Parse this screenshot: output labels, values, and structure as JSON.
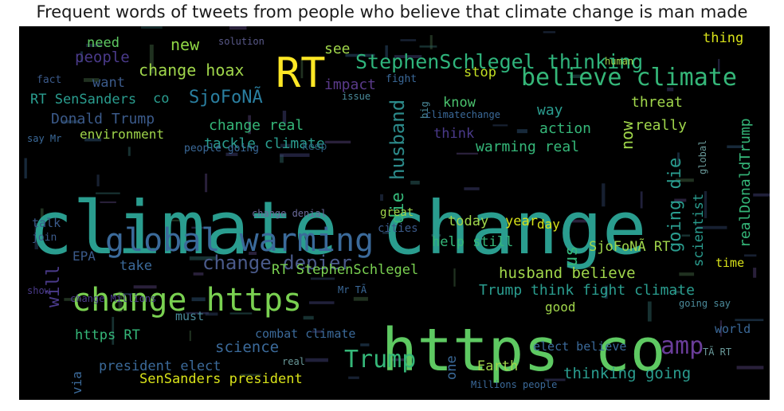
{
  "title": "Frequent words of tweets from people who believe that climate change is man made",
  "colors": {
    "background": "#000000",
    "title_text": "#1a1a1a"
  },
  "words": [
    {
      "text": "climate change",
      "size": 92,
      "color": "#2a9d8f"
    },
    {
      "text": "https co",
      "size": 74,
      "color": "#5ec962"
    },
    {
      "text": "RT",
      "size": 52,
      "color": "#fde725"
    },
    {
      "text": "global warming",
      "size": 40,
      "color": "#3b6a9a"
    },
    {
      "text": "change https",
      "size": 40,
      "color": "#7ad151"
    },
    {
      "text": "believe climate",
      "size": 30,
      "color": "#35b779"
    },
    {
      "text": "StephenSchlegel thinking",
      "size": 25,
      "color": "#2fb47c"
    },
    {
      "text": "Trump",
      "size": 30,
      "color": "#35b779"
    },
    {
      "text": "amp",
      "size": 30,
      "color": "#6a3d9a"
    },
    {
      "text": "change depier",
      "size": 24,
      "color": "#4a5a8a"
    },
    {
      "text": "husband",
      "size": 24,
      "color": "#2c8a8a"
    },
    {
      "text": "change hoax",
      "size": 20,
      "color": "#a0d64b"
    },
    {
      "text": "new",
      "size": 20,
      "color": "#8fd744"
    },
    {
      "text": "see",
      "size": 18,
      "color": "#a0d64b"
    },
    {
      "text": "need",
      "size": 17,
      "color": "#5ec962"
    },
    {
      "text": "people",
      "size": 19,
      "color": "#4a3a8a"
    },
    {
      "text": "thing",
      "size": 17,
      "color": "#d8e219"
    },
    {
      "text": "want",
      "size": 17,
      "color": "#3b5a8a"
    },
    {
      "text": "impact",
      "size": 18,
      "color": "#5a3a8a"
    },
    {
      "text": "stop",
      "size": 17,
      "color": "#c2df23"
    },
    {
      "text": "RT SenSanders",
      "size": 17,
      "color": "#2a9d8f"
    },
    {
      "text": "co",
      "size": 17,
      "color": "#2a9d8f"
    },
    {
      "text": "SjoFoNÃ",
      "size": 22,
      "color": "#2a7fa0"
    },
    {
      "text": "know",
      "size": 17,
      "color": "#4ac16d"
    },
    {
      "text": "threat",
      "size": 18,
      "color": "#a0d64b"
    },
    {
      "text": "Donald Trump",
      "size": 18,
      "color": "#3b5a8a"
    },
    {
      "text": "change real",
      "size": 18,
      "color": "#35b779"
    },
    {
      "text": "now",
      "size": 20,
      "color": "#a0d64b"
    },
    {
      "text": "way",
      "size": 18,
      "color": "#2a9d8f"
    },
    {
      "text": "environment",
      "size": 16,
      "color": "#a0d64b"
    },
    {
      "text": "tackle climate",
      "size": 18,
      "color": "#2a9d8f"
    },
    {
      "text": "action",
      "size": 18,
      "color": "#35b779"
    },
    {
      "text": "really",
      "size": 18,
      "color": "#a0d64b"
    },
    {
      "text": "think",
      "size": 17,
      "color": "#4a3a8a"
    },
    {
      "text": "warming real",
      "size": 18,
      "color": "#35b779"
    },
    {
      "text": "going die",
      "size": 22,
      "color": "#2a9d8f"
    },
    {
      "text": "die",
      "size": 22,
      "color": "#35b779"
    },
    {
      "text": "scientist",
      "size": 17,
      "color": "#2a9d8f"
    },
    {
      "text": "realDonaldTrump",
      "size": 18,
      "color": "#35b779"
    },
    {
      "text": "global",
      "size": 12,
      "color": "#6a9a9a"
    },
    {
      "text": "talk",
      "size": 15,
      "color": "#3b5a8a"
    },
    {
      "text": "today",
      "size": 17,
      "color": "#a0d64b"
    },
    {
      "text": "year",
      "size": 17,
      "color": "#d8e219"
    },
    {
      "text": "day",
      "size": 16,
      "color": "#d8e219"
    },
    {
      "text": "great",
      "size": 14,
      "color": "#a0d64b"
    },
    {
      "text": "cities",
      "size": 14,
      "color": "#3b5a8a"
    },
    {
      "text": "change denial",
      "size": 12,
      "color": "#6a6a9a"
    },
    {
      "text": "join",
      "size": 13,
      "color": "#3b5a8a"
    },
    {
      "text": "EPA",
      "size": 16,
      "color": "#3b5a8a"
    },
    {
      "text": "help still",
      "size": 17,
      "color": "#35b779"
    },
    {
      "text": "take",
      "size": 17,
      "color": "#3b6a9a"
    },
    {
      "text": "us",
      "size": 22,
      "color": "#35b779"
    },
    {
      "text": "SjoFoNÃ RT",
      "size": 17,
      "color": "#a0d64b"
    },
    {
      "text": "time",
      "size": 15,
      "color": "#d8e219"
    },
    {
      "text": "RT StephenSchlegel",
      "size": 17,
      "color": "#7ad151"
    },
    {
      "text": "husband believe",
      "size": 19,
      "color": "#a0d64b"
    },
    {
      "text": "will",
      "size": 22,
      "color": "#4a3a8a"
    },
    {
      "text": "Trump think fight climate",
      "size": 18,
      "color": "#2a9d8f"
    },
    {
      "text": "going say",
      "size": 12,
      "color": "#4a8a9a"
    },
    {
      "text": "good",
      "size": 16,
      "color": "#a0d64b"
    },
    {
      "text": "must",
      "size": 15,
      "color": "#4a8a9a"
    },
    {
      "text": "world",
      "size": 15,
      "color": "#3b6a9a"
    },
    {
      "text": "https RT",
      "size": 17,
      "color": "#35b779"
    },
    {
      "text": "combat climate",
      "size": 15,
      "color": "#3b6a9a"
    },
    {
      "text": "science",
      "size": 19,
      "color": "#3b6a9a"
    },
    {
      "text": "one",
      "size": 17,
      "color": "#3b6a9a"
    },
    {
      "text": "elect believe",
      "size": 15,
      "color": "#3b6a9a"
    },
    {
      "text": "TÃ RT",
      "size": 12,
      "color": "#6a9a9a"
    },
    {
      "text": "via",
      "size": 16,
      "color": "#3b6a9a"
    },
    {
      "text": "president elect",
      "size": 17,
      "color": "#3b6a9a"
    },
    {
      "text": "Earth",
      "size": 17,
      "color": "#a0d64b"
    },
    {
      "text": "thinking going",
      "size": 19,
      "color": "#2a9d8f"
    },
    {
      "text": "SenSanders president",
      "size": 17,
      "color": "#d8e219"
    },
    {
      "text": "real",
      "size": 12,
      "color": "#6a9a9a"
    },
    {
      "text": "Millions people",
      "size": 12,
      "color": "#3b6a9a"
    },
    {
      "text": "people going",
      "size": 13,
      "color": "#3b6a9a"
    },
    {
      "text": "keep",
      "size": 13,
      "color": "#2a5a7a"
    },
    {
      "text": "issue",
      "size": 12,
      "color": "#4a8a9a"
    },
    {
      "text": "fight",
      "size": 13,
      "color": "#3b6a9a"
    },
    {
      "text": "big",
      "size": 12,
      "color": "#4a8a9a"
    },
    {
      "text": "climatechange",
      "size": 12,
      "color": "#3b6a9a"
    },
    {
      "text": "human",
      "size": 12,
      "color": "#a0d64b"
    },
    {
      "text": "solution",
      "size": 12,
      "color": "#5a5a8a"
    },
    {
      "text": "fact",
      "size": 13,
      "color": "#3b5a8a"
    },
    {
      "text": "say Mr",
      "size": 12,
      "color": "#3b6a9a"
    },
    {
      "text": "Mr TÃ",
      "size": 12,
      "color": "#3b6a9a"
    },
    {
      "text": "change Millions",
      "size": 12,
      "color": "#4a3a8a"
    },
    {
      "text": "show",
      "size": 12,
      "color": "#4a3a8a"
    }
  ]
}
